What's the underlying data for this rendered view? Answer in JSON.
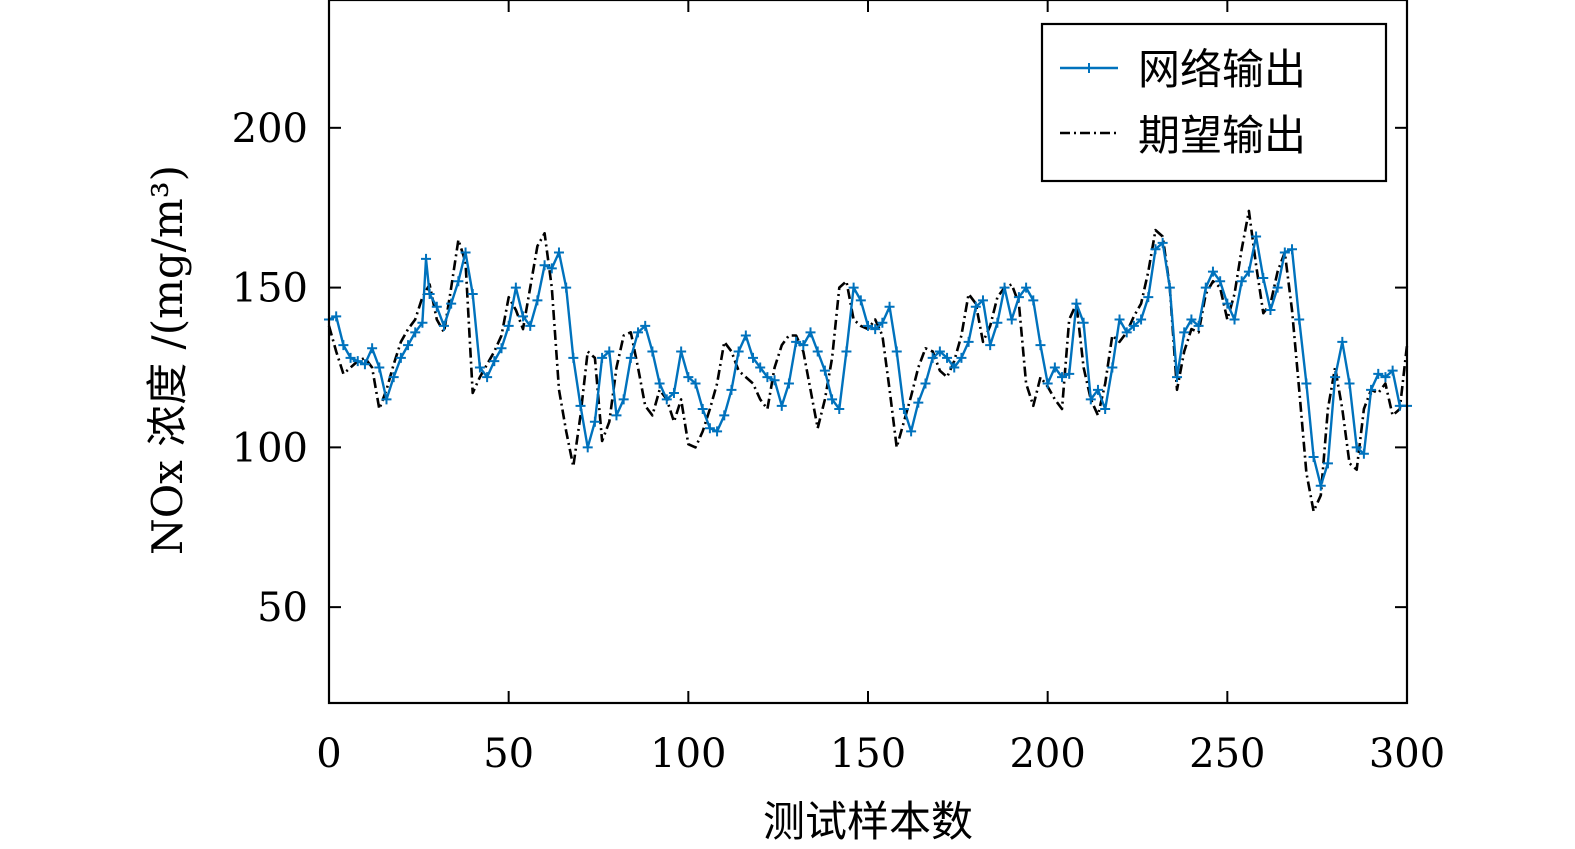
{
  "chart_data": {
    "type": "line",
    "xlabel": "测试样本数",
    "ylabel": "NOx 浓度 /(mg/m³)",
    "xlim": [
      0,
      300
    ],
    "ylim": [
      20,
      240
    ],
    "xticks": [
      0,
      50,
      100,
      150,
      200,
      250,
      300
    ],
    "yticks": [
      50,
      100,
      150,
      200
    ],
    "grid": false,
    "legend_position": "top-right",
    "colors": {
      "network": "#0072BD",
      "expected": "#000000"
    },
    "series": [
      {
        "name": "网络输出",
        "style": "solid-with-plus-markers",
        "x": [
          0,
          2,
          4,
          6,
          8,
          10,
          12,
          14,
          16,
          18,
          20,
          22,
          24,
          26,
          27,
          28,
          30,
          32,
          34,
          36,
          38,
          40,
          42,
          44,
          46,
          48,
          50,
          52,
          54,
          56,
          58,
          60,
          62,
          64,
          66,
          68,
          70,
          72,
          74,
          76,
          78,
          80,
          82,
          84,
          86,
          88,
          90,
          92,
          94,
          96,
          98,
          100,
          102,
          104,
          106,
          108,
          110,
          112,
          114,
          116,
          118,
          120,
          122,
          124,
          126,
          128,
          130,
          132,
          134,
          136,
          138,
          140,
          142,
          144,
          146,
          148,
          150,
          152,
          154,
          156,
          158,
          160,
          162,
          164,
          166,
          168,
          170,
          172,
          174,
          176,
          178,
          180,
          182,
          184,
          186,
          188,
          190,
          192,
          194,
          196,
          198,
          200,
          202,
          204,
          206,
          208,
          210,
          212,
          214,
          216,
          218,
          220,
          222,
          224,
          226,
          228,
          230,
          232,
          234,
          236,
          238,
          240,
          242,
          244,
          246,
          248,
          250,
          252,
          254,
          256,
          258,
          260,
          262,
          264,
          266,
          268,
          270,
          272,
          274,
          276,
          278,
          280,
          282,
          284,
          286,
          288,
          290,
          292,
          294,
          296,
          298,
          300
        ],
        "y": [
          140,
          141,
          132,
          128,
          127,
          126,
          131,
          125,
          115,
          122,
          128,
          132,
          136,
          139,
          159,
          148,
          144,
          138,
          145,
          152,
          161,
          148,
          125,
          122,
          127,
          131,
          138,
          150,
          141,
          138,
          146,
          157,
          156,
          161,
          150,
          128,
          113,
          100,
          108,
          128,
          130,
          110,
          115,
          128,
          136,
          138,
          130,
          120,
          115,
          117,
          130,
          122,
          120,
          112,
          106,
          105,
          110,
          118,
          130,
          135,
          128,
          125,
          122,
          121,
          113,
          120,
          133,
          132,
          136,
          130,
          124,
          115,
          112,
          130,
          150,
          146,
          138,
          137,
          139,
          144,
          130,
          112,
          105,
          114,
          120,
          128,
          130,
          128,
          125,
          128,
          133,
          144,
          146,
          132,
          139,
          150,
          140,
          147,
          150,
          146,
          132,
          120,
          125,
          122,
          123,
          145,
          139,
          115,
          118,
          112,
          125,
          140,
          136,
          138,
          140,
          147,
          162,
          164,
          150,
          122,
          136,
          140,
          138,
          150,
          155,
          152,
          145,
          140,
          152,
          155,
          166,
          153,
          143,
          150,
          161,
          162,
          140,
          120,
          97,
          88,
          95,
          122,
          133,
          120,
          100,
          98,
          118,
          123,
          122,
          124,
          113,
          113
        ]
      },
      {
        "name": "期望输出",
        "style": "dash-dot",
        "x": [
          0,
          2,
          4,
          6,
          8,
          10,
          12,
          14,
          16,
          18,
          20,
          22,
          24,
          26,
          28,
          30,
          32,
          34,
          36,
          38,
          40,
          42,
          44,
          46,
          48,
          50,
          52,
          54,
          56,
          58,
          60,
          62,
          64,
          66,
          68,
          70,
          72,
          74,
          76,
          78,
          80,
          82,
          84,
          86,
          88,
          90,
          92,
          94,
          96,
          98,
          100,
          102,
          104,
          106,
          108,
          110,
          112,
          114,
          116,
          118,
          120,
          122,
          124,
          126,
          128,
          130,
          132,
          134,
          136,
          138,
          140,
          142,
          144,
          146,
          148,
          150,
          152,
          154,
          156,
          158,
          160,
          162,
          164,
          166,
          168,
          170,
          172,
          174,
          176,
          178,
          180,
          182,
          184,
          186,
          188,
          190,
          192,
          194,
          196,
          198,
          200,
          202,
          204,
          206,
          208,
          210,
          212,
          214,
          216,
          218,
          220,
          222,
          224,
          226,
          228,
          230,
          232,
          234,
          236,
          238,
          240,
          242,
          244,
          246,
          248,
          250,
          252,
          254,
          256,
          258,
          260,
          262,
          264,
          266,
          268,
          270,
          272,
          274,
          276,
          278,
          280,
          282,
          284,
          286,
          288,
          290,
          292,
          294,
          296,
          298,
          300
        ],
        "y": [
          138,
          130,
          123,
          125,
          127,
          128,
          125,
          112,
          118,
          126,
          133,
          137,
          140,
          147,
          151,
          140,
          136,
          150,
          165,
          158,
          117,
          122,
          126,
          130,
          135,
          147,
          143,
          137,
          150,
          163,
          167,
          150,
          118,
          105,
          94,
          110,
          130,
          128,
          102,
          108,
          125,
          135,
          136,
          125,
          113,
          110,
          118,
          115,
          108,
          115,
          101,
          100,
          105,
          112,
          120,
          133,
          130,
          124,
          122,
          120,
          115,
          112,
          125,
          132,
          135,
          135,
          130,
          118,
          106,
          115,
          128,
          150,
          152,
          140,
          138,
          137,
          140,
          135,
          118,
          100,
          108,
          116,
          125,
          131,
          130,
          124,
          122,
          127,
          135,
          148,
          145,
          133,
          138,
          147,
          150,
          151,
          145,
          120,
          113,
          122,
          119,
          115,
          112,
          140,
          145,
          125,
          115,
          110,
          120,
          135,
          133,
          136,
          141,
          145,
          155,
          168,
          166,
          150,
          118,
          130,
          137,
          136,
          148,
          152,
          150,
          140,
          148,
          162,
          174,
          157,
          142,
          145,
          155,
          161,
          143,
          118,
          92,
          80,
          85,
          112,
          125,
          112,
          95,
          93,
          112,
          118,
          117,
          120,
          110,
          112,
          132
        ]
      }
    ]
  }
}
